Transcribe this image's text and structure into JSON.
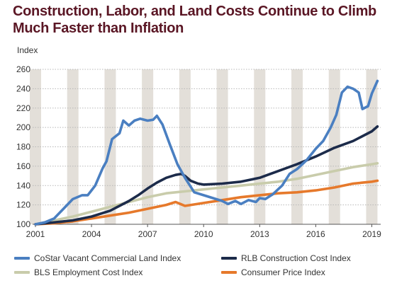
{
  "title": "Construction, Labor, and Land Costs Continue to Climb Much Faster than Inflation",
  "chart_data": {
    "type": "line",
    "title": "Construction, Labor, and Land Costs Continue to Climb Much Faster than Inflation",
    "ylabel": "Index",
    "xlabel": "",
    "xlim": [
      2001,
      2019.4
    ],
    "ylim": [
      100,
      260
    ],
    "yticks": [
      100,
      120,
      140,
      160,
      180,
      200,
      220,
      240,
      260
    ],
    "xticks": [
      "2001",
      "2004",
      "2007",
      "2010",
      "2013",
      "2016",
      "2019"
    ],
    "xtick_values": [
      2001,
      2004,
      2007,
      2010,
      2013,
      2016,
      2019
    ],
    "grid": "horizontal",
    "shaded_year_bands": [
      2001,
      2003,
      2005,
      2007,
      2009,
      2011,
      2013,
      2015,
      2017,
      2019
    ],
    "legend_position": "bottom",
    "series": [
      {
        "name": "CoStar Vacant Commercial Land Index",
        "color": "#4a7fc1",
        "points": [
          [
            2001,
            100
          ],
          [
            2001.5,
            102
          ],
          [
            2002,
            106
          ],
          [
            2002.5,
            116
          ],
          [
            2003,
            126
          ],
          [
            2003.5,
            130
          ],
          [
            2003.8,
            130
          ],
          [
            2004.2,
            140
          ],
          [
            2004.6,
            158
          ],
          [
            2004.8,
            165
          ],
          [
            2005.1,
            188
          ],
          [
            2005.5,
            194
          ],
          [
            2005.7,
            207
          ],
          [
            2006,
            202
          ],
          [
            2006.3,
            207
          ],
          [
            2006.6,
            209
          ],
          [
            2007,
            207
          ],
          [
            2007.3,
            208
          ],
          [
            2007.5,
            212
          ],
          [
            2007.8,
            203
          ],
          [
            2008.2,
            182
          ],
          [
            2008.6,
            162
          ],
          [
            2009,
            148
          ],
          [
            2009.5,
            133
          ],
          [
            2010,
            130
          ],
          [
            2010.5,
            127
          ],
          [
            2011,
            124
          ],
          [
            2011.3,
            121
          ],
          [
            2011.7,
            124
          ],
          [
            2012,
            121
          ],
          [
            2012.4,
            125
          ],
          [
            2012.8,
            123
          ],
          [
            2013,
            127
          ],
          [
            2013.3,
            126
          ],
          [
            2013.7,
            131
          ],
          [
            2014.2,
            140
          ],
          [
            2014.6,
            152
          ],
          [
            2015,
            157
          ],
          [
            2015.5,
            166
          ],
          [
            2016,
            178
          ],
          [
            2016.4,
            186
          ],
          [
            2016.8,
            200
          ],
          [
            2017.1,
            213
          ],
          [
            2017.4,
            236
          ],
          [
            2017.7,
            242
          ],
          [
            2018,
            240
          ],
          [
            2018.3,
            236
          ],
          [
            2018.5,
            219
          ],
          [
            2018.8,
            222
          ],
          [
            2019,
            235
          ],
          [
            2019.3,
            248
          ]
        ]
      },
      {
        "name": "RLB Construction Cost Index",
        "color": "#1c2b4a",
        "points": [
          [
            2001,
            100
          ],
          [
            2002,
            102
          ],
          [
            2003,
            104
          ],
          [
            2004,
            108
          ],
          [
            2005,
            114
          ],
          [
            2006,
            124
          ],
          [
            2006.5,
            130
          ],
          [
            2007,
            137
          ],
          [
            2007.5,
            143
          ],
          [
            2008,
            148
          ],
          [
            2008.5,
            151
          ],
          [
            2008.8,
            152
          ],
          [
            2009,
            150
          ],
          [
            2009.3,
            145
          ],
          [
            2009.7,
            142
          ],
          [
            2010,
            141
          ],
          [
            2011,
            142
          ],
          [
            2012,
            144
          ],
          [
            2013,
            148
          ],
          [
            2014,
            155
          ],
          [
            2015,
            162
          ],
          [
            2016,
            170
          ],
          [
            2017,
            179
          ],
          [
            2018,
            186
          ],
          [
            2019,
            196
          ],
          [
            2019.3,
            201
          ]
        ]
      },
      {
        "name": "BLS Employment Cost Index",
        "color": "#c9ccab",
        "points": [
          [
            2001,
            100
          ],
          [
            2002,
            104
          ],
          [
            2003,
            108
          ],
          [
            2004,
            113
          ],
          [
            2005,
            118
          ],
          [
            2006,
            123
          ],
          [
            2007,
            128
          ],
          [
            2008,
            132
          ],
          [
            2009,
            134
          ],
          [
            2010,
            136
          ],
          [
            2011,
            138
          ],
          [
            2012,
            140
          ],
          [
            2013,
            142
          ],
          [
            2014,
            144
          ],
          [
            2015,
            147
          ],
          [
            2016,
            151
          ],
          [
            2017,
            155
          ],
          [
            2018,
            159
          ],
          [
            2019,
            162
          ],
          [
            2019.3,
            163
          ]
        ]
      },
      {
        "name": "Consumer Price Index",
        "color": "#e6792b",
        "points": [
          [
            2001,
            100
          ],
          [
            2002,
            101
          ],
          [
            2003,
            103
          ],
          [
            2004,
            106
          ],
          [
            2005,
            109
          ],
          [
            2006,
            112
          ],
          [
            2007,
            116
          ],
          [
            2008,
            120
          ],
          [
            2008.5,
            123
          ],
          [
            2009,
            119
          ],
          [
            2010,
            122
          ],
          [
            2011,
            125
          ],
          [
            2012,
            128
          ],
          [
            2013,
            130
          ],
          [
            2014,
            132
          ],
          [
            2015,
            133
          ],
          [
            2016,
            135
          ],
          [
            2017,
            138
          ],
          [
            2018,
            142
          ],
          [
            2019,
            144
          ],
          [
            2019.3,
            145
          ]
        ]
      }
    ]
  }
}
